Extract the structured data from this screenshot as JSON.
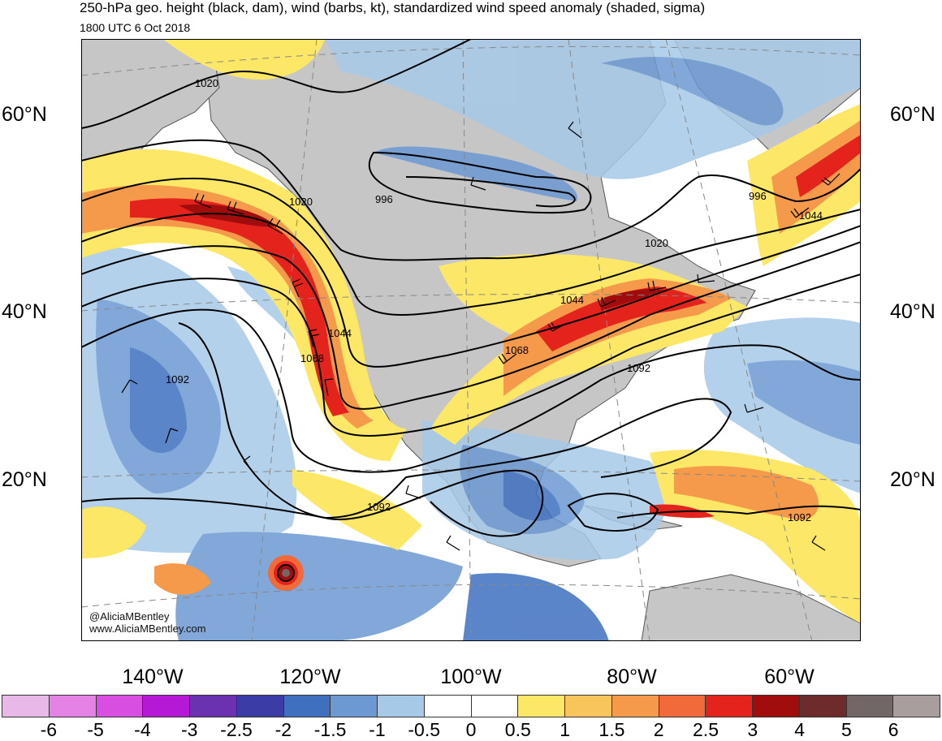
{
  "title": "250-hPa geo. height (black, dam), wind (barbs, kt), standardized wind speed anomaly (shaded, sigma)",
  "subtitle": "1800 UTC 6 Oct 2018",
  "lat_labels": [
    "60°N",
    "40°N",
    "20°N"
  ],
  "lon_labels": [
    "140°W",
    "120°W",
    "100°W",
    "80°W",
    "60°W"
  ],
  "contour_labels": [
    "1020",
    "1020",
    "996",
    "996",
    "1020",
    "1044",
    "1044",
    "1044",
    "1068",
    "1068",
    "1092",
    "1092",
    "1092",
    "1092"
  ],
  "colorbar": {
    "ticks": [
      "-6",
      "-5",
      "-4",
      "-3",
      "-2.5",
      "-2",
      "-1.5",
      "-1",
      "-0.5",
      "0",
      "0.5",
      "1",
      "1.5",
      "2",
      "2.5",
      "3",
      "4",
      "5",
      "6"
    ],
    "colors": [
      "#e8b8e8",
      "#e482e6",
      "#d84ee0",
      "#b519d6",
      "#6a32b0",
      "#3c3ca6",
      "#3f70c0",
      "#6c99d2",
      "#a7c9e8",
      "#ffffff",
      "#ffffff",
      "#fde766",
      "#f7c55c",
      "#f59a4a",
      "#f06a3a",
      "#e4231d",
      "#a10c0c",
      "#6e2b2b",
      "#726767",
      "#a99e9e"
    ]
  },
  "credits": {
    "handle": "@AliciaMBentley",
    "website": "www.AliciaMBentley.com"
  },
  "map_colors": {
    "land": "#c6c6c6",
    "ocean": "#ffffff",
    "coast": "#555555",
    "contour": "#000000"
  }
}
